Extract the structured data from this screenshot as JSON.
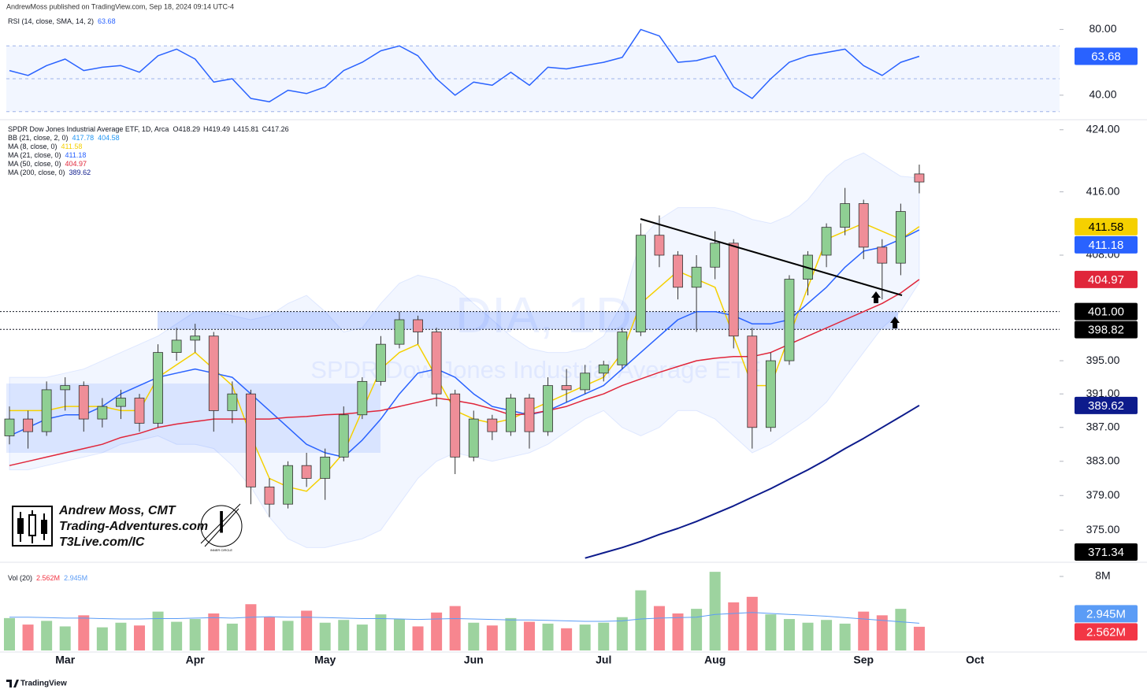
{
  "header": "AndrewMoss published on TradingView.com, Sep 18, 2024 09:14 UTC-4",
  "footer": "TradingView",
  "branding": {
    "name": "Andrew Moss, CMT",
    "site": "Trading-Adventures.com",
    "link": "T3Live.com/IC",
    "badge": "INNER CIRCLE"
  },
  "chart_data": {
    "type": "candlestick",
    "title": "SPDR Dow Jones Industrial Average ETF, 1D, Arca",
    "watermark": "DIA, 1D",
    "watermark_sub": "SPDR Dow Jones Industrial Average ETF",
    "ohlc_letters": [
      "O",
      "H",
      "L",
      "C"
    ],
    "up_color": "#8fcf93",
    "down_color": "#ef8e98",
    "categories": [
      null,
      null,
      null,
      "Mar",
      null,
      null,
      null,
      null,
      null,
      null,
      "Apr",
      null,
      null,
      null,
      null,
      null,
      null,
      "May",
      null,
      null,
      null,
      null,
      null,
      null,
      null,
      "Jun",
      null,
      null,
      null,
      null,
      null,
      null,
      "Jul",
      null,
      null,
      null,
      null,
      null,
      "Aug",
      null,
      null,
      null,
      null,
      null,
      null,
      null,
      "Sep",
      null,
      null,
      null,
      null,
      null,
      "Oct"
    ],
    "open": [
      386,
      388,
      386.5,
      391.5,
      392,
      388,
      389.5,
      390.5,
      387.5,
      396,
      397.5,
      398,
      389,
      391,
      380,
      378,
      382.5,
      381,
      383.5,
      388.5,
      392.5,
      397,
      400,
      398.5,
      391,
      383.5,
      388,
      386.5,
      390.5,
      386.5,
      392,
      391.5,
      393.5,
      394.5,
      398.5,
      410.5,
      408,
      404,
      406.5,
      409.5,
      398,
      387,
      395,
      405,
      408,
      411.5,
      414.5,
      409,
      407,
      418.29,
      null,
      null,
      null
    ],
    "high": [
      389.5,
      389,
      392.5,
      393,
      392.5,
      390.5,
      391.5,
      391,
      397,
      399,
      399.5,
      398.5,
      392.5,
      391.5,
      381,
      383,
      384,
      384.5,
      389.5,
      393,
      398,
      401,
      400.5,
      399,
      391.5,
      389,
      388.5,
      391,
      391,
      393,
      394,
      394.5,
      395,
      399,
      412,
      413,
      408.5,
      408,
      411,
      410,
      399,
      396,
      405.5,
      408.5,
      412,
      416.5,
      415,
      410,
      414.5,
      419.49,
      null,
      null,
      null
    ],
    "low": [
      385,
      384.5,
      386,
      389,
      386.5,
      387,
      388,
      386.5,
      387,
      395,
      396,
      386.5,
      387.5,
      378,
      376.5,
      377.5,
      380,
      378.5,
      383,
      388,
      392,
      396.5,
      397,
      389.5,
      381.5,
      383,
      385.5,
      386,
      384.5,
      386,
      390,
      391,
      392.5,
      394,
      398,
      406.5,
      402.5,
      398.5,
      405,
      396.5,
      384.5,
      386.5,
      394.5,
      403,
      406.5,
      410.5,
      407.5,
      402.5,
      405.5,
      415.81,
      null,
      null,
      null
    ],
    "close": [
      388,
      386.5,
      391.5,
      392,
      388,
      389.5,
      390.5,
      387.5,
      396,
      397.5,
      398,
      389,
      391,
      380,
      378,
      382.5,
      381,
      383.5,
      388.5,
      392.5,
      397,
      400,
      398.5,
      391,
      383.5,
      388,
      386.5,
      390.5,
      386.5,
      392,
      391.5,
      393.5,
      394.5,
      398.5,
      410.5,
      408,
      404,
      406.5,
      409.5,
      398,
      387,
      395,
      405,
      408,
      411.5,
      414.5,
      409,
      407,
      413.5,
      417.26,
      null,
      null,
      null
    ],
    "log_scale": true,
    "grid": false,
    "ylim": [
      371.5,
      425
    ],
    "yticks": [
      {
        "value": 424,
        "label": "424.00"
      },
      {
        "value": 416,
        "label": "416.00"
      },
      {
        "value": 408,
        "label": "408.00"
      },
      {
        "value": 395,
        "label": "395.00"
      },
      {
        "value": 391,
        "label": "391.00"
      },
      {
        "value": 387,
        "label": "387.00"
      },
      {
        "value": 383,
        "label": "383.00"
      },
      {
        "value": 379,
        "label": "379.00"
      },
      {
        "value": 375,
        "label": "375.00"
      }
    ],
    "series": [
      {
        "name": "BB (21, close, 2, 0)",
        "color": "#2196f3",
        "upper": [
          393,
          393,
          393,
          393.5,
          394,
          395,
          396,
          397,
          398,
          399.5,
          401,
          401,
          400.5,
          400,
          400.5,
          402,
          403,
          401,
          398.5,
          399,
          402,
          404.5,
          405.5,
          405,
          404,
          402,
          400,
          398,
          396.5,
          396,
          396,
          396.5,
          398,
          402,
          410,
          412.5,
          414,
          414,
          414,
          413.5,
          412.5,
          412,
          413,
          415,
          418,
          420,
          421,
          419.5,
          418,
          417.78,
          null,
          null,
          null
        ],
        "lower": [
          382,
          382,
          382.5,
          383,
          383.5,
          384,
          385,
          385.5,
          386,
          385,
          385,
          384.5,
          382.5,
          380,
          376.5,
          374,
          373,
          373,
          373.5,
          374,
          375,
          378,
          381,
          383,
          384,
          383.5,
          383,
          383.5,
          384,
          385,
          386.5,
          388,
          389,
          387,
          386,
          387,
          389,
          389,
          388,
          386,
          384,
          385,
          386.5,
          388,
          390,
          393,
          396,
          399,
          401,
          404.58,
          null,
          null,
          null
        ]
      },
      {
        "name": "MA (8, close, 0)",
        "color": "#f5d000",
        "values": [
          389,
          389,
          389,
          389.5,
          389.5,
          389.5,
          389,
          389,
          393,
          394.5,
          396,
          394,
          392,
          386,
          381,
          380,
          379.5,
          381.5,
          384,
          389,
          394,
          396,
          397,
          393,
          389,
          388,
          387.5,
          388,
          389,
          390,
          391,
          392,
          393,
          396,
          402,
          404,
          406,
          405,
          404,
          398,
          392,
          392,
          398,
          404,
          410,
          411,
          412,
          411,
          410,
          411.58,
          null,
          null,
          null
        ]
      },
      {
        "name": "MA (21, close, 0)",
        "color": "#2962ff",
        "values": [
          386,
          387,
          388,
          388.5,
          388.5,
          389.5,
          391,
          392,
          393,
          393.5,
          394,
          393.5,
          393,
          391,
          389,
          387,
          385,
          384,
          383.5,
          385.5,
          388,
          391,
          393.5,
          394,
          393,
          391,
          389.5,
          389,
          388.5,
          389,
          390,
          391,
          392,
          394,
          396,
          398,
          400,
          401,
          401,
          400.5,
          399.5,
          399.5,
          400,
          402,
          404,
          406.5,
          408.5,
          409,
          410,
          411.18,
          null,
          null,
          null
        ]
      },
      {
        "name": "MA (50, close, 0)",
        "color": "#e0263a",
        "values": [
          382.5,
          383,
          383.5,
          384,
          384.5,
          385,
          385.8,
          386.3,
          387,
          387.4,
          387.7,
          388,
          388,
          388,
          388,
          388.2,
          388.3,
          388.5,
          388.6,
          388.8,
          389,
          389.5,
          390,
          390.5,
          390.2,
          389.8,
          389.2,
          388.5,
          388.6,
          389,
          389.5,
          390.3,
          391,
          392,
          392.8,
          393.6,
          394.3,
          395,
          395.3,
          395.5,
          395.5,
          396,
          397,
          398,
          399,
          400,
          401,
          402,
          403.3,
          404.97,
          null,
          null,
          null
        ]
      },
      {
        "name": "MA (200, close, 0)",
        "color": "#0d1b8c",
        "values": [
          null,
          null,
          null,
          null,
          null,
          null,
          null,
          null,
          null,
          null,
          null,
          null,
          null,
          null,
          null,
          null,
          null,
          null,
          null,
          null,
          null,
          null,
          null,
          null,
          null,
          null,
          null,
          null,
          null,
          null,
          null,
          371.8,
          372.4,
          373,
          373.7,
          374.5,
          375.2,
          376,
          376.9,
          377.8,
          378.8,
          379.8,
          380.9,
          382,
          383.2,
          384.5,
          385.7,
          387,
          388.3,
          389.62,
          null,
          null,
          null
        ]
      }
    ],
    "levels": [
      {
        "value": 401,
        "label": "401.00"
      },
      398.82
    ],
    "tag": 371.34,
    "rsi": {
      "title": "RSI (14, close, SMA, 14, 2)",
      "color": "#2962ff",
      "values": [
        55,
        52,
        58,
        62,
        55,
        57,
        58,
        54,
        64,
        68,
        62,
        48,
        50,
        38,
        36,
        43,
        41,
        45,
        55,
        60,
        67,
        70,
        64,
        50,
        40,
        48,
        46,
        54,
        46,
        57,
        56,
        58,
        60,
        63,
        80,
        76,
        60,
        61,
        64,
        45,
        38,
        50,
        60,
        64,
        66,
        68,
        58,
        52,
        60,
        63.68,
        null,
        null,
        null
      ],
      "ylim": [
        27,
        84.5
      ],
      "yticks": [
        {
          "value": 80,
          "label": "80.00"
        },
        {
          "value": 40,
          "label": "40.00"
        }
      ],
      "band": [
        30,
        70
      ],
      "mid": 50
    },
    "volume": {
      "title": "Vol (20)",
      "up_color": "rgba(76,175,80,0.55)",
      "down_color": "rgba(242,54,69,0.6)",
      "values": [
        3.5,
        2.8,
        3.2,
        2.6,
        3.8,
        2.5,
        3.0,
        2.7,
        4.2,
        3.1,
        3.4,
        4.0,
        2.9,
        5.0,
        3.6,
        3.2,
        4.3,
        3.0,
        3.3,
        2.8,
        3.9,
        3.4,
        2.6,
        4.1,
        4.8,
        3.0,
        2.7,
        3.5,
        3.1,
        2.9,
        2.4,
        2.8,
        3.0,
        3.6,
        6.5,
        4.8,
        4.0,
        4.5,
        8.5,
        5.2,
        5.8,
        3.9,
        3.4,
        3.0,
        3.3,
        2.9,
        4.2,
        3.8,
        4.5,
        2.562,
        null,
        null,
        null
      ],
      "value_labels": [
        null,
        null,
        null,
        null,
        null,
        null,
        null,
        null,
        null,
        null,
        null,
        null,
        null,
        null,
        null,
        null,
        null,
        null,
        null,
        null,
        null,
        null,
        null,
        null,
        null,
        null,
        null,
        null,
        null,
        null,
        null,
        null,
        null,
        null,
        null,
        null,
        null,
        null,
        null,
        null,
        null,
        null,
        null,
        null,
        null,
        null,
        null,
        null,
        null,
        "2.562M",
        null,
        null,
        null
      ],
      "ma": {
        "color": "#5b9cf6",
        "values": [
          3.6,
          3.6,
          3.55,
          3.5,
          3.5,
          3.45,
          3.4,
          3.4,
          3.45,
          3.45,
          3.5,
          3.55,
          3.5,
          3.6,
          3.65,
          3.6,
          3.6,
          3.55,
          3.5,
          3.45,
          3.45,
          3.4,
          3.35,
          3.4,
          3.45,
          3.4,
          3.35,
          3.3,
          3.3,
          3.25,
          3.2,
          3.15,
          3.15,
          3.2,
          3.4,
          3.5,
          3.55,
          3.6,
          3.9,
          4.0,
          4.1,
          4.0,
          3.9,
          3.8,
          3.7,
          3.55,
          3.4,
          3.25,
          3.1,
          2.945,
          null,
          null,
          null
        ],
        "value_labels": [
          null,
          null,
          null,
          null,
          null,
          null,
          null,
          null,
          null,
          null,
          null,
          null,
          null,
          null,
          null,
          null,
          null,
          null,
          null,
          null,
          null,
          null,
          null,
          null,
          null,
          null,
          null,
          null,
          null,
          null,
          null,
          null,
          null,
          null,
          null,
          null,
          null,
          null,
          null,
          null,
          null,
          null,
          null,
          null,
          null,
          null,
          null,
          null,
          null,
          "2.945M",
          null,
          null,
          null
        ]
      },
      "ylim": [
        0,
        8.85
      ],
      "yticks": [
        {
          "value": 8,
          "label": "8M"
        }
      ]
    }
  }
}
